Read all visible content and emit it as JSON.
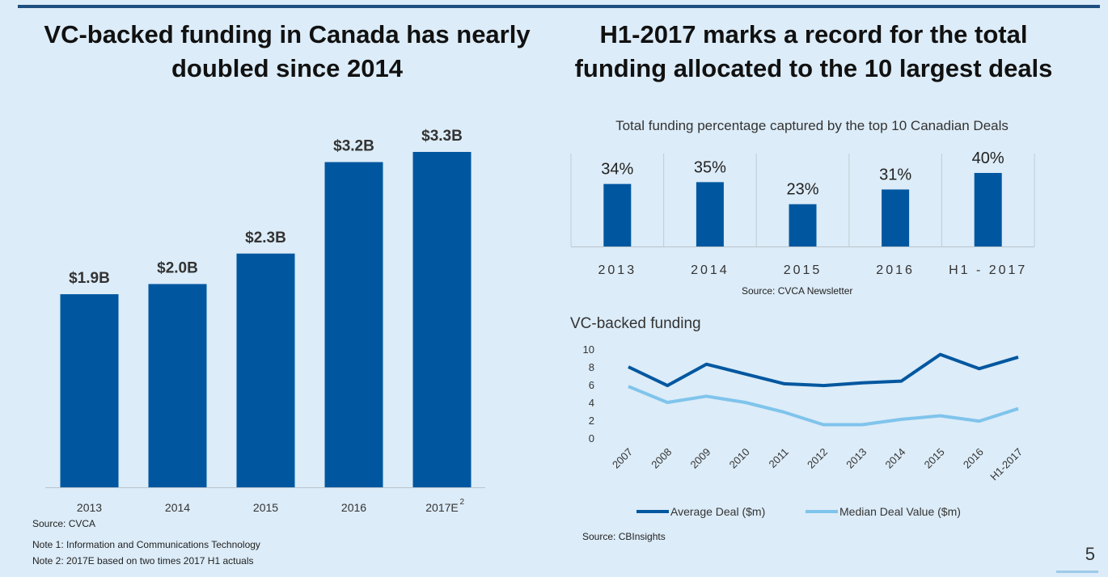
{
  "slide": {
    "heading_left": "VC-backed funding in Canada has nearly doubled since 2014",
    "heading_right": "H1-2017 marks a record for the total funding allocated to the 10  largest deals",
    "source_left": "Source:  CVCA",
    "note1": "Note 1: Information and Communications Technology",
    "note2": "Note 2: 2017E based on two times 2017 H1 actuals",
    "source_mid": "Source: CVCA Newsletter",
    "source_right": "Source: CBInsights",
    "page_number": "5"
  },
  "colors": {
    "dark_blue": "#0057a0",
    "light_blue": "#7fc4ec",
    "background": "#dcecf8"
  },
  "chart_data": [
    {
      "type": "bar",
      "categories": [
        "2013",
        "2014",
        "2015",
        "2016",
        "2017E"
      ],
      "category_superscripts": [
        "",
        "",
        "",
        "",
        "2"
      ],
      "values": [
        1.9,
        2.0,
        2.3,
        3.2,
        3.3
      ],
      "data_labels": [
        "$1.9B",
        "$2.0B",
        "$2.3B",
        "$3.2B",
        "$3.3B"
      ],
      "ylim": [
        0,
        3.3
      ],
      "grid": false
    },
    {
      "type": "bar",
      "title": "Total funding percentage captured by the top 10 Canadian Deals",
      "categories": [
        "2013",
        "2014",
        "2015",
        "2016",
        "H1 - 2017"
      ],
      "values": [
        34,
        35,
        23,
        31,
        40
      ],
      "data_labels": [
        "34%",
        "35%",
        "23%",
        "31%",
        "40%"
      ],
      "ylim": [
        0,
        40
      ],
      "grid": false
    },
    {
      "type": "line",
      "title": "VC-backed funding",
      "x": [
        "2007",
        "2008",
        "2009",
        "2010",
        "2011",
        "2012",
        "2013",
        "2014",
        "2015",
        "2016",
        "H1-2017"
      ],
      "series": [
        {
          "name": "Average Deal ($m)",
          "values": [
            8.0,
            5.9,
            8.3,
            7.2,
            6.1,
            5.9,
            6.2,
            6.4,
            9.4,
            7.8,
            9.1
          ]
        },
        {
          "name": "Median Deal Value ($m)",
          "values": [
            5.8,
            4.0,
            4.7,
            4.0,
            2.9,
            1.5,
            1.5,
            2.1,
            2.5,
            1.9,
            3.3
          ]
        }
      ],
      "yticks": [
        "0",
        "2",
        "4",
        "6",
        "8",
        "10"
      ],
      "ylim": [
        0,
        10
      ],
      "legend": "bottom",
      "grid": false
    }
  ]
}
